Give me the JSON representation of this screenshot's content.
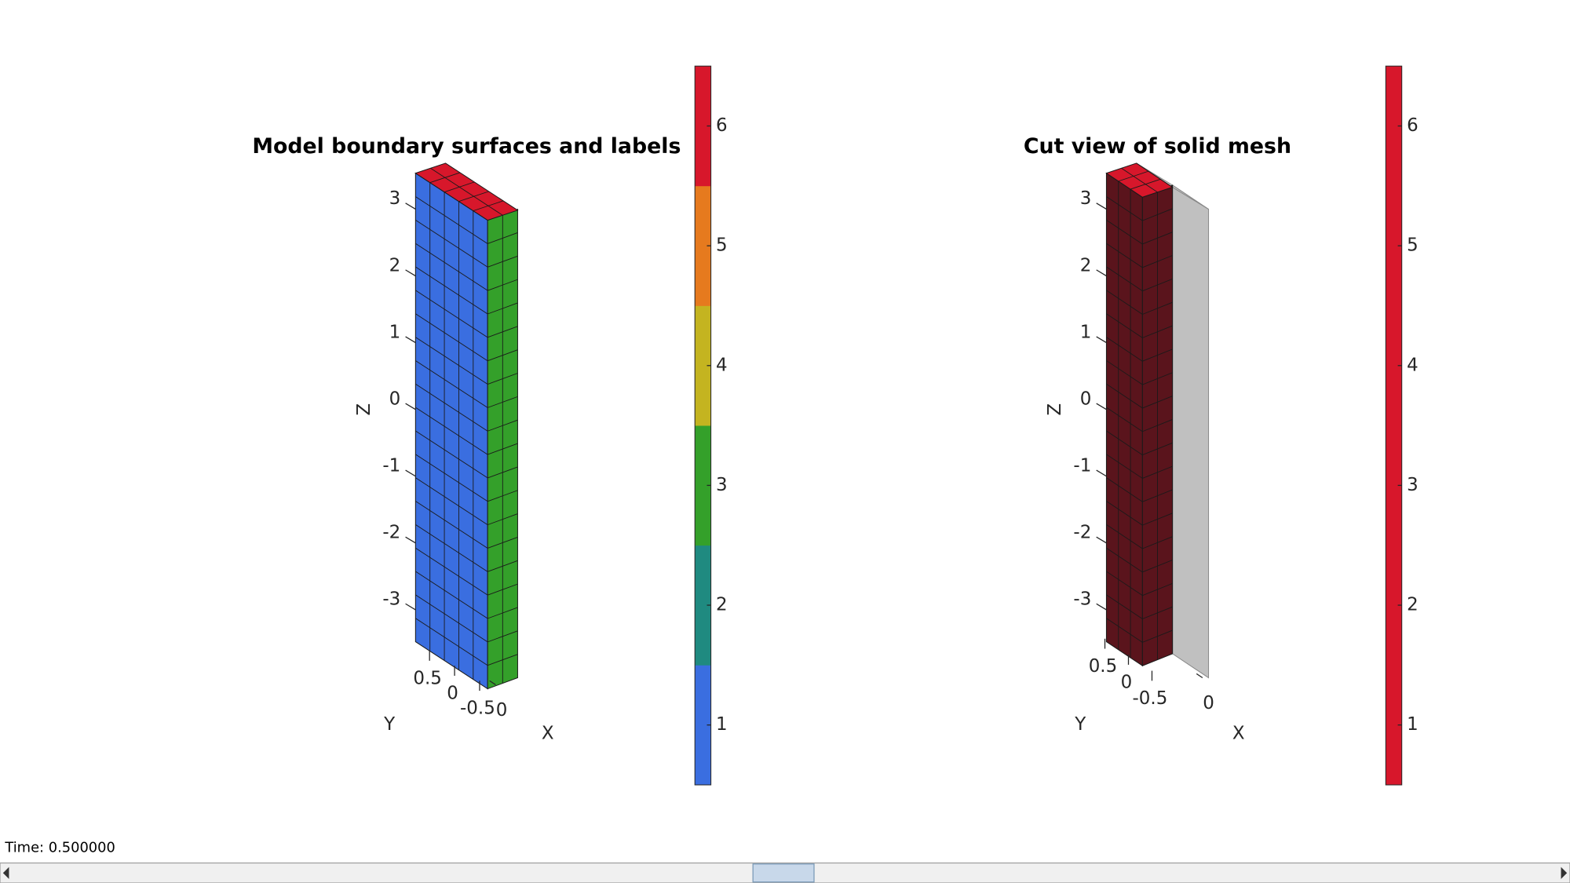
{
  "panels": [
    {
      "title": "Model boundary surfaces and labels",
      "zlabel": "Z",
      "ylabel": "Y",
      "xlabel": "X",
      "zticks": [
        3,
        2,
        1,
        0,
        -1,
        -2,
        -3
      ],
      "yticks": [
        0.5,
        0,
        -0.5
      ],
      "xticks": [
        0
      ],
      "colorbar": {
        "clim": [
          0.5,
          6.5
        ],
        "ticks": [
          1,
          2,
          3,
          4,
          5,
          6
        ],
        "colors": [
          "#3a6ee0",
          "#1f8a80",
          "#34a02a",
          "#c4b420",
          "#e67a1e",
          "#d7172b"
        ]
      }
    },
    {
      "title": "Cut view of solid mesh",
      "zlabel": "Z",
      "ylabel": "Y",
      "xlabel": "X",
      "zticks": [
        3,
        2,
        1,
        0,
        -1,
        -2,
        -3
      ],
      "yticks": [
        0.5,
        0,
        -0.5
      ],
      "xticks": [
        0
      ],
      "colorbar": {
        "clim": [
          0.5,
          6.5
        ],
        "ticks": [
          1,
          2,
          3,
          4,
          5,
          6
        ],
        "colors": [
          "#d7172b"
        ]
      }
    }
  ],
  "status": {
    "time": "Time: 0.500000"
  }
}
